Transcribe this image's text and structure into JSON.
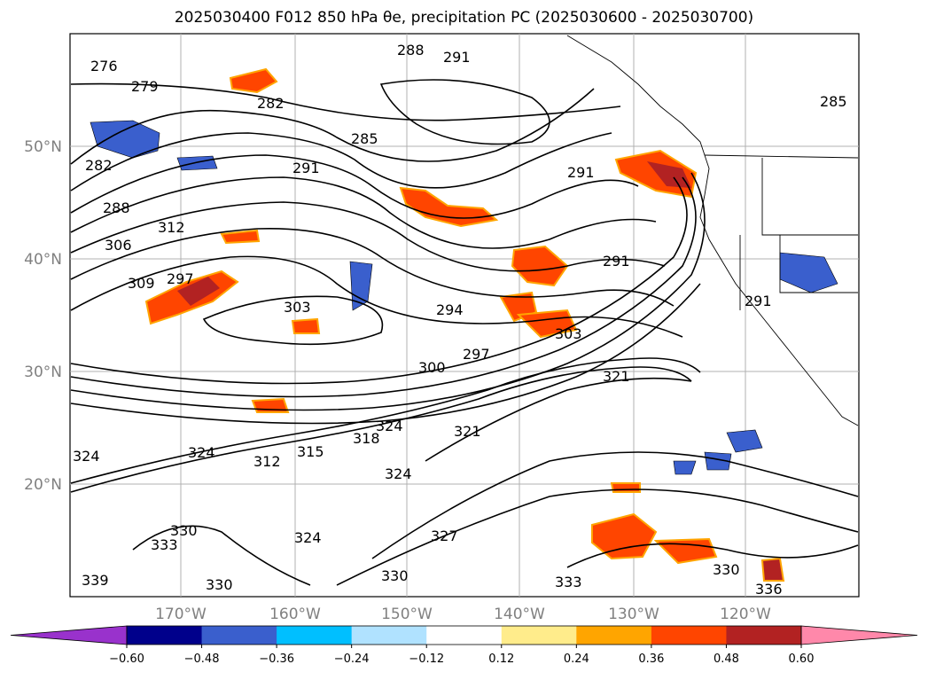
{
  "title": "2025030400 F012 850 hPa θe, precipitation PC (2025030600 - 2025030700)",
  "lat_labels": [
    "50°N",
    "40°N",
    "30°N",
    "20°N"
  ],
  "lon_labels": [
    "170°W",
    "160°W",
    "150°W",
    "140°W",
    "130°W",
    "120°W"
  ],
  "colorbar": {
    "ticks": [
      "−0.60",
      "−0.48",
      "−0.36",
      "−0.24",
      "−0.12",
      "0.12",
      "0.24",
      "0.36",
      "0.48",
      "0.60"
    ],
    "colors": [
      "#9932cc",
      "#00008b",
      "#3a5fcd",
      "#00bfff",
      "#b0e2ff",
      "#ffffff",
      "#ffec8b",
      "#ffa500",
      "#ff4500",
      "#b22222",
      "#ff88aa"
    ]
  },
  "contour_labels": [
    "276",
    "279",
    "282",
    "282",
    "285",
    "285",
    "288",
    "288",
    "291",
    "291",
    "291",
    "291",
    "291",
    "294",
    "297",
    "297",
    "300",
    "303",
    "303",
    "306",
    "309",
    "312",
    "312",
    "315",
    "318",
    "321",
    "321",
    "324",
    "324",
    "324",
    "324",
    "324",
    "327",
    "330",
    "330",
    "330",
    "330",
    "333",
    "333",
    "336",
    "339"
  ]
}
